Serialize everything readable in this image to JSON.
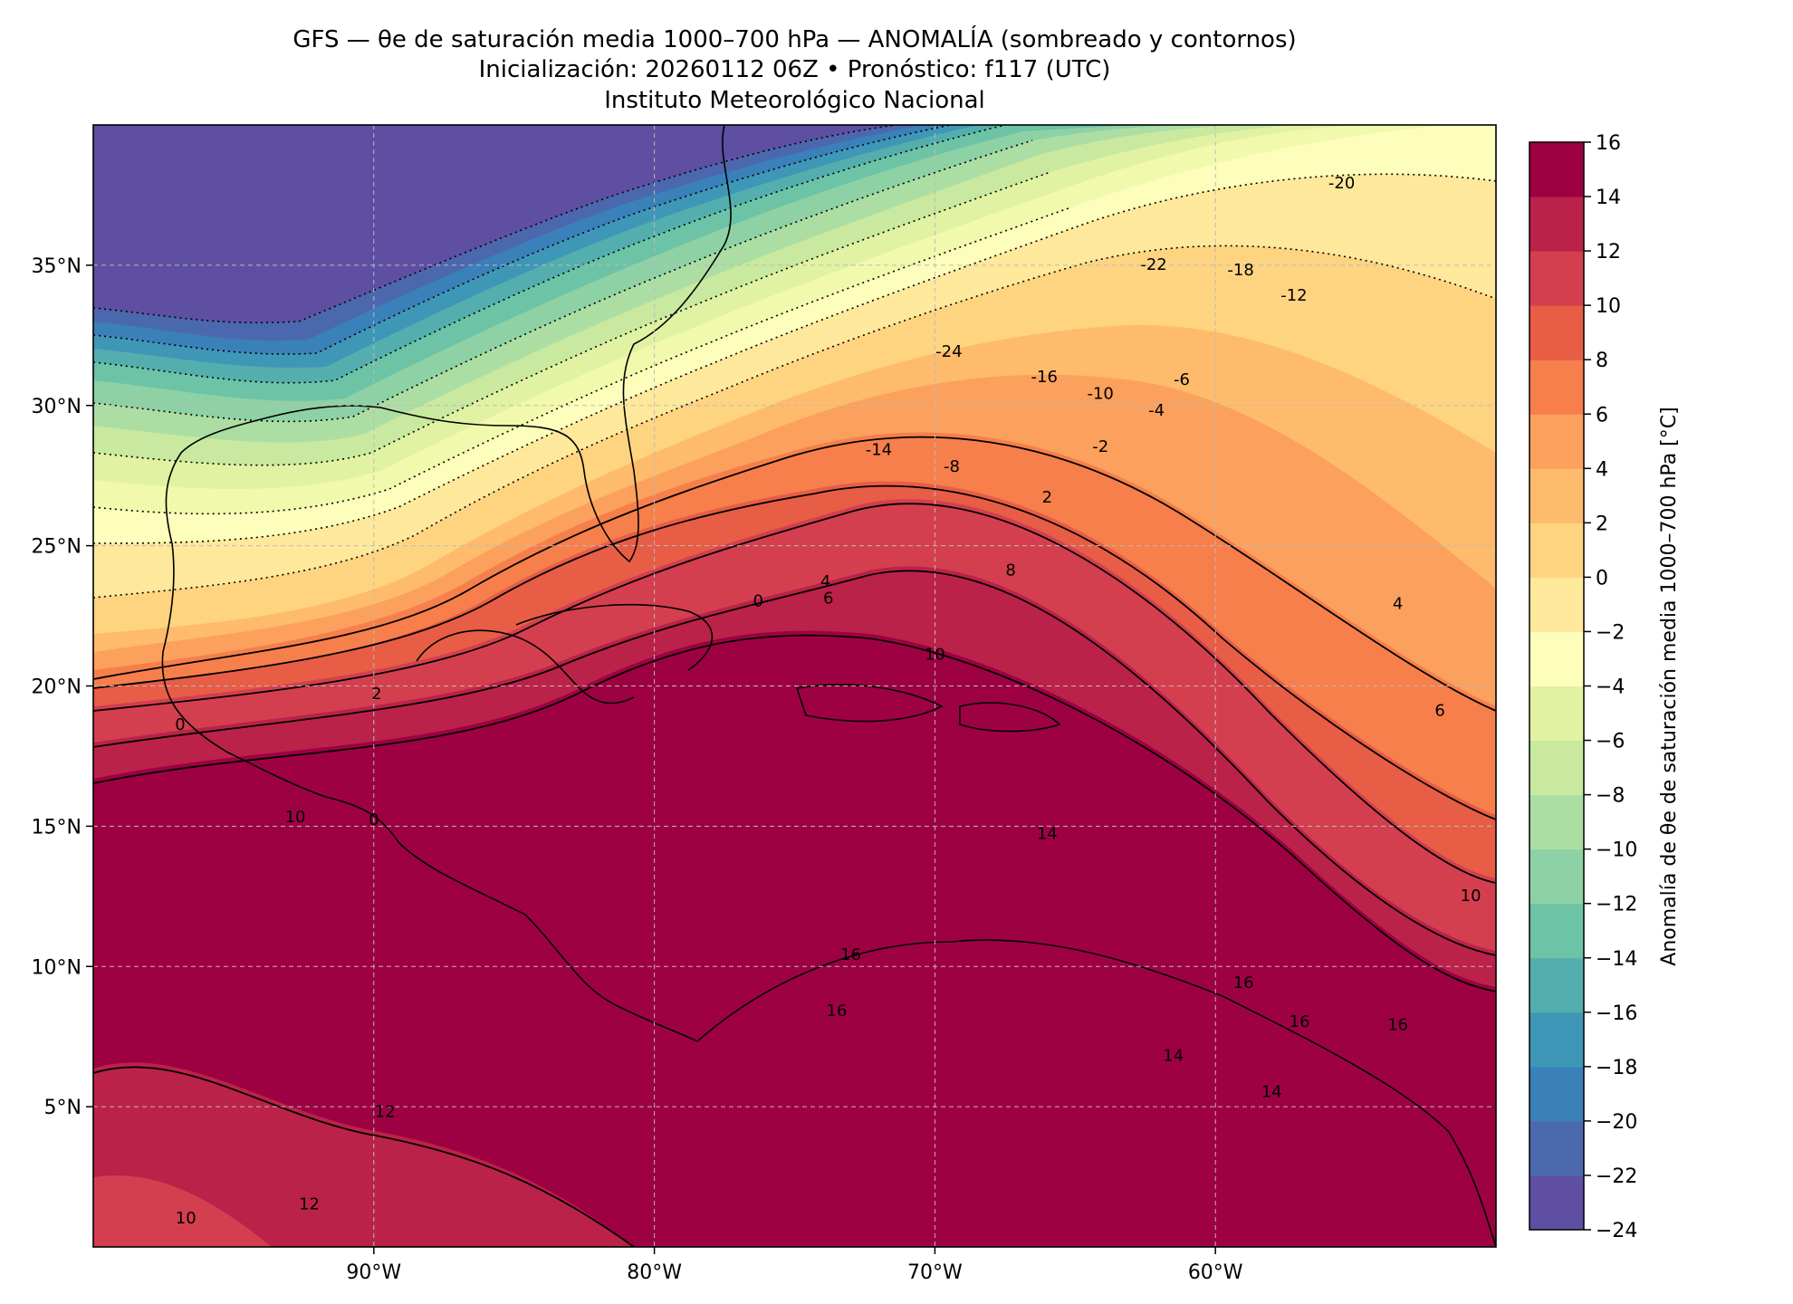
{
  "title": {
    "line1": "GFS — θe de saturación media 1000–700 hPa — ANOMALÍA (sombreado y contornos)",
    "line2": "Inicialización: 20260112 06Z   •   Pronóstico: f117 (UTC)",
    "line3": "Instituto Meteorológico Nacional"
  },
  "map": {
    "lon_range": [
      -100,
      -50
    ],
    "lat_range": [
      0,
      40
    ],
    "lon_ticks": [
      {
        "value": -90,
        "label": "90°W"
      },
      {
        "value": -80,
        "label": "80°W"
      },
      {
        "value": -70,
        "label": "70°W"
      },
      {
        "value": -60,
        "label": "60°W"
      }
    ],
    "lat_ticks": [
      {
        "value": 35,
        "label": "35°N"
      },
      {
        "value": 30,
        "label": "30°N"
      },
      {
        "value": 25,
        "label": "25°N"
      },
      {
        "value": 20,
        "label": "20°N"
      },
      {
        "value": 15,
        "label": "15°N"
      },
      {
        "value": 10,
        "label": "10°N"
      },
      {
        "value": 5,
        "label": "5°N"
      }
    ],
    "gridlines": true,
    "gridline_style": "dashed"
  },
  "colorbar": {
    "label": "Anomalía de θe de saturación media 1000–700 hPa [°C]",
    "min": -24,
    "max": 16,
    "step": 2,
    "tick_values": [
      16,
      14,
      12,
      10,
      8,
      6,
      4,
      2,
      0,
      -2,
      -4,
      -6,
      -8,
      -10,
      -12,
      -14,
      -16,
      -18,
      -20,
      -22,
      -24
    ],
    "tick_labels": [
      "16",
      "14",
      "12",
      "10",
      "8",
      "6",
      "4",
      "2",
      "0",
      "−2",
      "−4",
      "−6",
      "−8",
      "−10",
      "−12",
      "−14",
      "−16",
      "−18",
      "−20",
      "−22",
      "−24"
    ],
    "colors": [
      "#5e4fa2",
      "#4b68ae",
      "#3a80b9",
      "#3f97b7",
      "#54aead",
      "#6cc3a6",
      "#8ed1a4",
      "#acdea3",
      "#c8e99f",
      "#e1f3a2",
      "#f1f9ac",
      "#fdfdbc",
      "#fee89b",
      "#fed481",
      "#fdbb6b",
      "#fca05d",
      "#f67f4b",
      "#e75d46",
      "#d43f4f",
      "#bb2249",
      "#9e0142"
    ]
  },
  "contour_labels": [
    {
      "text": "-24",
      "lon": -69.5,
      "lat": 31.9
    },
    {
      "text": "-22",
      "lon": -62.2,
      "lat": 35.0
    },
    {
      "text": "-20",
      "lon": -55.5,
      "lat": 37.9
    },
    {
      "text": "-18",
      "lon": -59.1,
      "lat": 34.8
    },
    {
      "text": "-16",
      "lon": -66.1,
      "lat": 31.0
    },
    {
      "text": "-14",
      "lon": -72.0,
      "lat": 28.4
    },
    {
      "text": "-12",
      "lon": -57.2,
      "lat": 33.9
    },
    {
      "text": "-10",
      "lon": -64.1,
      "lat": 30.4
    },
    {
      "text": "-8",
      "lon": -69.4,
      "lat": 27.8
    },
    {
      "text": "-6",
      "lon": -61.2,
      "lat": 30.9
    },
    {
      "text": "-4",
      "lon": -62.1,
      "lat": 29.8
    },
    {
      "text": "-2",
      "lon": -64.1,
      "lat": 28.5
    },
    {
      "text": "0",
      "lon": -76.3,
      "lat": 23.0
    },
    {
      "text": "2",
      "lon": -66.0,
      "lat": 26.7
    },
    {
      "text": "4",
      "lon": -73.9,
      "lat": 23.7
    },
    {
      "text": "6",
      "lon": -73.8,
      "lat": 23.1
    },
    {
      "text": "8",
      "lon": -67.3,
      "lat": 24.1
    },
    {
      "text": "10",
      "lon": -70.0,
      "lat": 21.1
    },
    {
      "text": "14",
      "lon": -66.0,
      "lat": 14.7
    },
    {
      "text": "16",
      "lon": -73.0,
      "lat": 10.4
    },
    {
      "text": "16",
      "lon": -59.0,
      "lat": 9.4
    },
    {
      "text": "16",
      "lon": -57.0,
      "lat": 8.0
    },
    {
      "text": "16",
      "lon": -53.5,
      "lat": 7.9
    },
    {
      "text": "16",
      "lon": -73.5,
      "lat": 8.4
    },
    {
      "text": "6",
      "lon": -52.0,
      "lat": 19.1
    },
    {
      "text": "4",
      "lon": -53.5,
      "lat": 22.9
    },
    {
      "text": "10",
      "lon": -50.9,
      "lat": 12.5
    },
    {
      "text": "12",
      "lon": -89.6,
      "lat": 4.8
    },
    {
      "text": "12",
      "lon": -92.3,
      "lat": 1.5
    },
    {
      "text": "10",
      "lon": -96.7,
      "lat": 1.0
    },
    {
      "text": "10",
      "lon": -92.8,
      "lat": 15.3
    },
    {
      "text": "2",
      "lon": -89.9,
      "lat": 19.7
    },
    {
      "text": "0",
      "lon": -90.0,
      "lat": 15.2
    },
    {
      "text": "0",
      "lon": -96.9,
      "lat": 18.6
    },
    {
      "text": "14",
      "lon": -61.5,
      "lat": 6.8
    },
    {
      "text": "14",
      "lon": -58.0,
      "lat": 5.5
    }
  ]
}
